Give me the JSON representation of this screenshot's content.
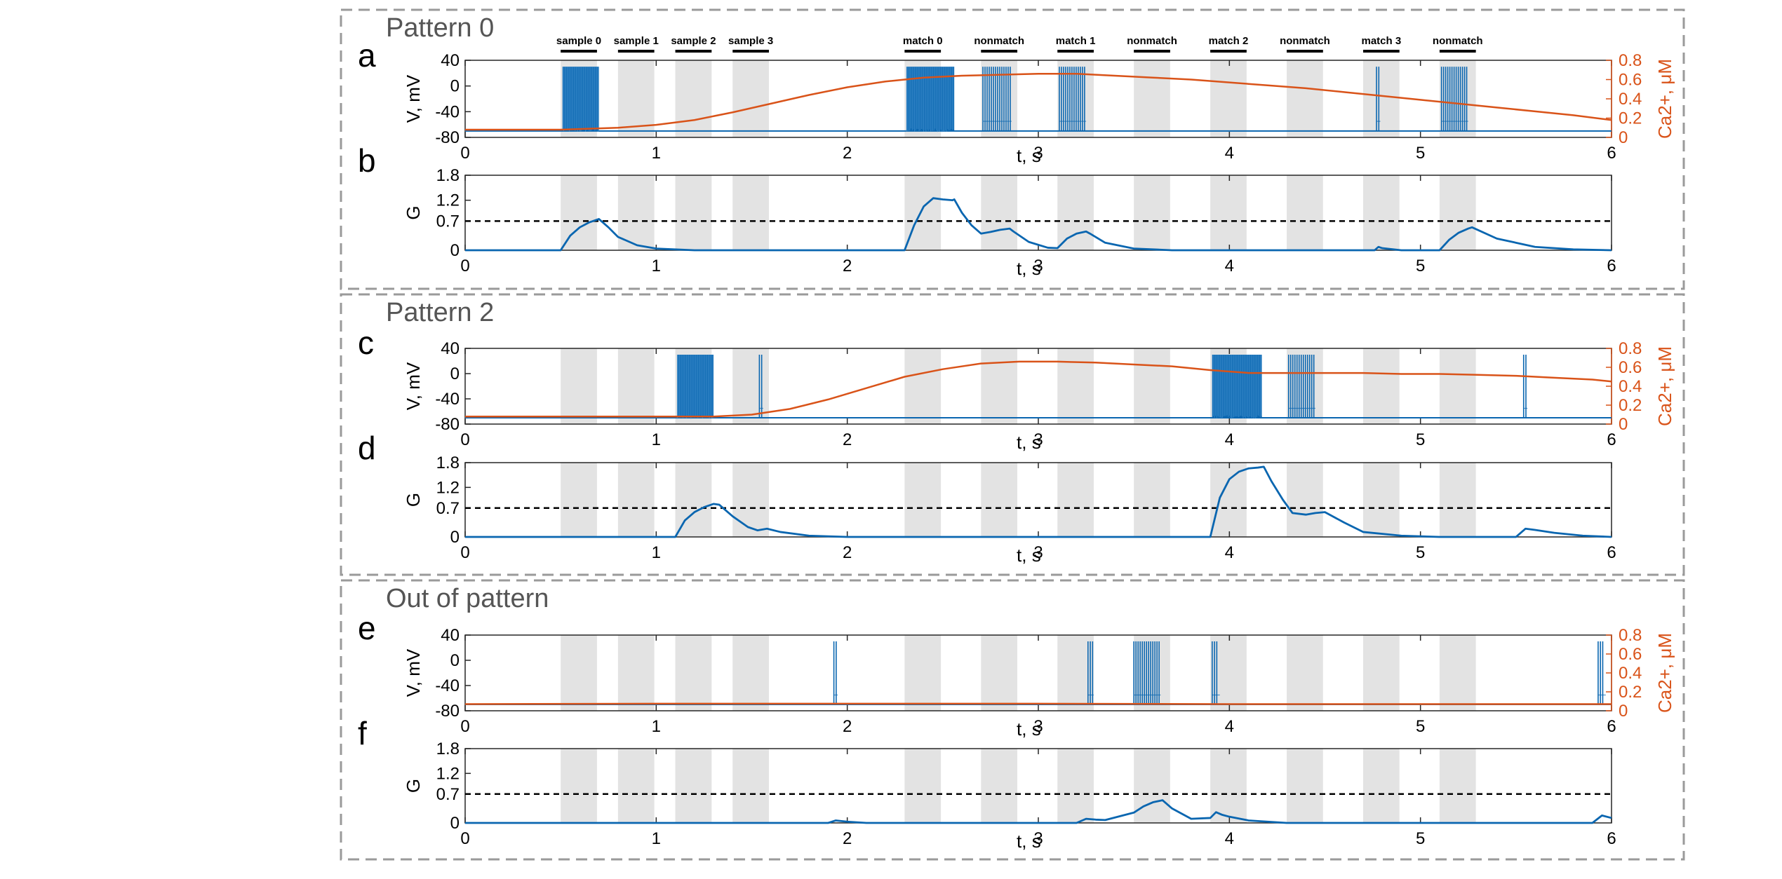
{
  "colors": {
    "voltage": "#0A66B0",
    "calcium": "#D95319",
    "window": "#E3E3E3",
    "dashed_box": "#9A9A9A",
    "axis": "#000000",
    "title_gray": "#555555"
  },
  "stimulus_windows": {
    "labels": [
      "sample 0",
      "sample 1",
      "sample 2",
      "sample 3",
      "match 0",
      "nonmatch",
      "match 1",
      "nonmatch",
      "match 2",
      "nonmatch",
      "match 3",
      "nonmatch"
    ],
    "starts": [
      0.5,
      0.8,
      1.1,
      1.4,
      2.3,
      2.7,
      3.1,
      3.5,
      3.9,
      4.3,
      4.7,
      5.1
    ],
    "duration": 0.19
  },
  "chart_data": [
    {
      "group": "Pattern 0",
      "panels": [
        {
          "letter": "a",
          "type": "line",
          "xlabel": "t, s",
          "xlim": [
            0,
            6
          ],
          "xticks": [
            0,
            1,
            2,
            3,
            4,
            5,
            6
          ],
          "ylabel": "V, mV",
          "ylim": [
            -80,
            40
          ],
          "yticks": [
            -80,
            -40,
            0,
            40
          ],
          "y2label": "Ca2+, μM",
          "y2lim": [
            0,
            0.8
          ],
          "y2ticks": [
            0,
            0.2,
            0.4,
            0.6,
            0.8
          ],
          "bursts": [
            [
              0.51,
              0.7,
              "dense"
            ],
            [
              2.31,
              2.56,
              "dense"
            ],
            [
              2.71,
              2.86,
              "spikes"
            ],
            [
              3.11,
              3.25,
              "spikes"
            ],
            [
              4.77,
              4.79,
              "single"
            ],
            [
              5.11,
              5.25,
              "spikes"
            ]
          ],
          "calcium": {
            "x": [
              0,
              0.5,
              0.8,
              1.0,
              1.2,
              1.4,
              1.6,
              1.8,
              2.0,
              2.2,
              2.4,
              2.6,
              2.8,
              3.0,
              3.2,
              3.4,
              3.6,
              3.8,
              4.0,
              4.2,
              4.4,
              4.6,
              4.8,
              5.0,
              5.2,
              5.4,
              5.6,
              5.8,
              6.0
            ],
            "y": [
              0.08,
              0.08,
              0.1,
              0.13,
              0.18,
              0.26,
              0.35,
              0.44,
              0.52,
              0.58,
              0.62,
              0.64,
              0.65,
              0.66,
              0.66,
              0.64,
              0.62,
              0.6,
              0.57,
              0.54,
              0.51,
              0.47,
              0.43,
              0.39,
              0.35,
              0.31,
              0.27,
              0.23,
              0.18
            ]
          }
        },
        {
          "letter": "b",
          "type": "line",
          "xlabel": "t, s",
          "xlim": [
            0,
            6
          ],
          "xticks": [
            0,
            1,
            2,
            3,
            4,
            5,
            6
          ],
          "ylabel": "G",
          "ylim": [
            0,
            1.8
          ],
          "yticks": [
            0,
            0.7,
            1.2,
            1.8
          ],
          "threshold": 0.7,
          "G": {
            "x": [
              0,
              0.5,
              0.55,
              0.6,
              0.65,
              0.7,
              0.75,
              0.8,
              0.9,
              1.0,
              1.2,
              2.3,
              2.35,
              2.4,
              2.45,
              2.5,
              2.55,
              2.56,
              2.6,
              2.65,
              2.7,
              2.75,
              2.8,
              2.85,
              2.87,
              2.95,
              3.05,
              3.1,
              3.15,
              3.2,
              3.25,
              3.27,
              3.35,
              3.5,
              3.7,
              4.76,
              4.78,
              4.8,
              4.9,
              5.1,
              5.15,
              5.2,
              5.25,
              5.27,
              5.4,
              5.6,
              5.8,
              6.0
            ],
            "y": [
              0,
              0,
              0.35,
              0.55,
              0.67,
              0.75,
              0.55,
              0.32,
              0.12,
              0.04,
              0,
              0,
              0.6,
              1.05,
              1.25,
              1.22,
              1.2,
              1.22,
              0.9,
              0.6,
              0.4,
              0.44,
              0.49,
              0.52,
              0.45,
              0.2,
              0.06,
              0.05,
              0.28,
              0.4,
              0.45,
              0.4,
              0.18,
              0.04,
              0,
              0,
              0.08,
              0.05,
              0,
              0,
              0.25,
              0.42,
              0.52,
              0.55,
              0.28,
              0.08,
              0.02,
              0
            ]
          }
        }
      ]
    },
    {
      "group": "Pattern 2",
      "panels": [
        {
          "letter": "c",
          "type": "line",
          "xlabel": "t, s",
          "xlim": [
            0,
            6
          ],
          "xticks": [
            0,
            1,
            2,
            3,
            4,
            5,
            6
          ],
          "ylabel": "V, mV",
          "ylim": [
            -80,
            40
          ],
          "yticks": [
            -80,
            -40,
            0,
            40
          ],
          "y2label": "Ca2+, μM",
          "y2lim": [
            0,
            0.8
          ],
          "y2ticks": [
            0,
            0.2,
            0.4,
            0.6,
            0.8
          ],
          "bursts": [
            [
              1.11,
              1.3,
              "dense"
            ],
            [
              1.54,
              1.56,
              "single"
            ],
            [
              3.91,
              4.17,
              "dense"
            ],
            [
              4.31,
              4.45,
              "spikes"
            ],
            [
              5.54,
              5.56,
              "single"
            ]
          ],
          "calcium": {
            "x": [
              0,
              1.0,
              1.3,
              1.5,
              1.7,
              1.9,
              2.1,
              2.3,
              2.5,
              2.7,
              2.9,
              3.1,
              3.3,
              3.5,
              3.7,
              3.9,
              4.1,
              4.3,
              4.5,
              4.7,
              4.9,
              5.1,
              5.3,
              5.5,
              5.7,
              5.9,
              6.0
            ],
            "y": [
              0.08,
              0.08,
              0.08,
              0.1,
              0.16,
              0.26,
              0.38,
              0.5,
              0.58,
              0.64,
              0.66,
              0.66,
              0.65,
              0.63,
              0.61,
              0.57,
              0.54,
              0.54,
              0.54,
              0.54,
              0.53,
              0.53,
              0.52,
              0.51,
              0.49,
              0.47,
              0.45
            ]
          }
        },
        {
          "letter": "d",
          "type": "line",
          "xlabel": "t, s",
          "xlim": [
            0,
            6
          ],
          "xticks": [
            0,
            1,
            2,
            3,
            4,
            5,
            6
          ],
          "ylabel": "G",
          "ylim": [
            0,
            1.8
          ],
          "yticks": [
            0,
            0.7,
            1.2,
            1.8
          ],
          "threshold": 0.7,
          "G": {
            "x": [
              0,
              1.1,
              1.15,
              1.2,
              1.25,
              1.3,
              1.33,
              1.4,
              1.48,
              1.53,
              1.58,
              1.65,
              1.8,
              2.0,
              3.9,
              3.95,
              4.0,
              4.05,
              4.1,
              4.15,
              4.18,
              4.22,
              4.28,
              4.33,
              4.4,
              4.45,
              4.5,
              4.6,
              4.7,
              4.9,
              5.1,
              5.5,
              5.55,
              5.6,
              5.7,
              5.85,
              6.0
            ],
            "y": [
              0,
              0,
              0.4,
              0.6,
              0.72,
              0.8,
              0.78,
              0.5,
              0.24,
              0.16,
              0.2,
              0.12,
              0.03,
              0,
              0,
              0.95,
              1.4,
              1.58,
              1.66,
              1.68,
              1.7,
              1.35,
              0.9,
              0.58,
              0.54,
              0.58,
              0.6,
              0.35,
              0.12,
              0.03,
              0,
              0,
              0.2,
              0.17,
              0.1,
              0.03,
              0
            ]
          }
        }
      ]
    },
    {
      "group": "Out of pattern",
      "panels": [
        {
          "letter": "e",
          "type": "line",
          "xlabel": "t, s",
          "xlim": [
            0,
            6
          ],
          "xticks": [
            0,
            1,
            2,
            3,
            4,
            5,
            6
          ],
          "ylabel": "V, mV",
          "ylim": [
            -80,
            40
          ],
          "yticks": [
            -80,
            -40,
            0,
            40
          ],
          "y2label": "Ca2+, μM",
          "y2lim": [
            0,
            0.8
          ],
          "y2ticks": [
            0,
            0.2,
            0.4,
            0.6,
            0.8
          ],
          "bursts": [
            [
              1.93,
              1.95,
              "single"
            ],
            [
              3.26,
              3.29,
              "double"
            ],
            [
              3.5,
              3.64,
              "spikes"
            ],
            [
              3.91,
              3.95,
              "double"
            ],
            [
              5.93,
              5.97,
              "double"
            ]
          ],
          "calcium": {
            "x": [
              0,
              1.0,
              2.0,
              3.0,
              4.0,
              5.0,
              6.0
            ],
            "y": [
              0.07,
              0.075,
              0.075,
              0.075,
              0.07,
              0.07,
              0.07
            ]
          }
        },
        {
          "letter": "f",
          "type": "line",
          "xlabel": "t, s",
          "xlim": [
            0,
            6
          ],
          "xticks": [
            0,
            1,
            2,
            3,
            4,
            5,
            6
          ],
          "ylabel": "G",
          "ylim": [
            0,
            1.8
          ],
          "yticks": [
            0,
            0.7,
            1.2,
            1.8
          ],
          "threshold": 0.7,
          "G": {
            "x": [
              0,
              1.9,
              1.94,
              2.0,
              2.1,
              3.2,
              3.25,
              3.3,
              3.35,
              3.5,
              3.55,
              3.6,
              3.65,
              3.7,
              3.8,
              3.9,
              3.93,
              3.96,
              4.0,
              4.1,
              4.3,
              5.9,
              5.95,
              6.0
            ],
            "y": [
              0,
              0,
              0.06,
              0.03,
              0,
              0,
              0.1,
              0.08,
              0.07,
              0.25,
              0.4,
              0.5,
              0.55,
              0.35,
              0.1,
              0.12,
              0.26,
              0.2,
              0.15,
              0.06,
              0,
              0,
              0.18,
              0.12
            ]
          }
        }
      ]
    }
  ]
}
